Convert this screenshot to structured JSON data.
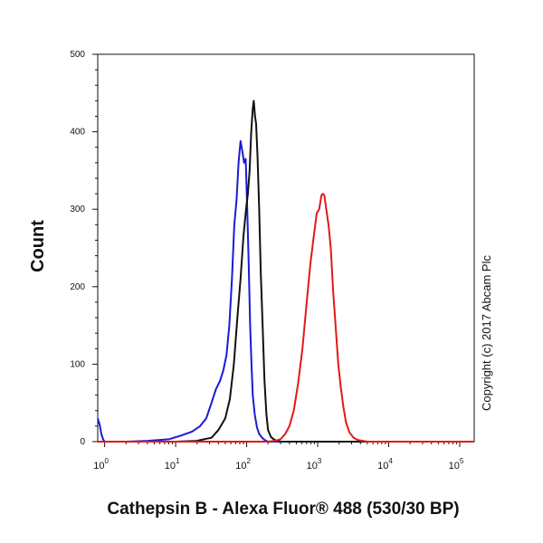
{
  "chart_data": {
    "type": "line",
    "title": "",
    "xlabel": "Cathepsin B - Alexa Fluor® 488 (530/30 BP)",
    "ylabel": "Count",
    "xscale": "log",
    "xlim": [
      0.8,
      160000
    ],
    "ylim": [
      0,
      500
    ],
    "yticks": [
      0,
      100,
      200,
      300,
      400,
      500
    ],
    "xticks": [
      {
        "base": "10",
        "exp": "0",
        "value": 1
      },
      {
        "base": "10",
        "exp": "1",
        "value": 10
      },
      {
        "base": "10",
        "exp": "2",
        "value": 100
      },
      {
        "base": "10",
        "exp": "3",
        "value": 1000
      },
      {
        "base": "10",
        "exp": "4",
        "value": 10000
      },
      {
        "base": "10",
        "exp": "5",
        "value": 100000
      }
    ],
    "annotation": "Copyright (c) 2017 Abcam Plc",
    "grid": false,
    "series": [
      {
        "color": "#1a1ad6",
        "points": [
          [
            0.8,
            30
          ],
          [
            0.85,
            22
          ],
          [
            0.9,
            10
          ],
          [
            0.95,
            3
          ],
          [
            1.0,
            0
          ],
          [
            2,
            0
          ],
          [
            4,
            1
          ],
          [
            8,
            3
          ],
          [
            12,
            8
          ],
          [
            17,
            13
          ],
          [
            22,
            20
          ],
          [
            27,
            30
          ],
          [
            32,
            50
          ],
          [
            37,
            68
          ],
          [
            42,
            78
          ],
          [
            47,
            92
          ],
          [
            52,
            112
          ],
          [
            57,
            150
          ],
          [
            62,
            210
          ],
          [
            67,
            280
          ],
          [
            72,
            312
          ],
          [
            77,
            360
          ],
          [
            82,
            388
          ],
          [
            87,
            375
          ],
          [
            92,
            360
          ],
          [
            97,
            365
          ],
          [
            102,
            300
          ],
          [
            107,
            225
          ],
          [
            112,
            150
          ],
          [
            117,
            100
          ],
          [
            122,
            60
          ],
          [
            130,
            35
          ],
          [
            140,
            18
          ],
          [
            150,
            10
          ],
          [
            165,
            5
          ],
          [
            180,
            2
          ],
          [
            200,
            0
          ],
          [
            400,
            0
          ],
          [
            160000,
            0
          ]
        ]
      },
      {
        "color": "#111111",
        "points": [
          [
            0.8,
            0
          ],
          [
            10,
            0
          ],
          [
            20,
            1
          ],
          [
            25,
            3
          ],
          [
            32,
            5
          ],
          [
            40,
            15
          ],
          [
            50,
            30
          ],
          [
            58,
            55
          ],
          [
            66,
            100
          ],
          [
            74,
            160
          ],
          [
            82,
            210
          ],
          [
            90,
            265
          ],
          [
            98,
            300
          ],
          [
            104,
            320
          ],
          [
            110,
            350
          ],
          [
            116,
            400
          ],
          [
            122,
            430
          ],
          [
            126,
            440
          ],
          [
            131,
            420
          ],
          [
            136,
            410
          ],
          [
            142,
            370
          ],
          [
            150,
            300
          ],
          [
            158,
            220
          ],
          [
            168,
            150
          ],
          [
            178,
            80
          ],
          [
            190,
            35
          ],
          [
            200,
            15
          ],
          [
            220,
            6
          ],
          [
            250,
            2
          ],
          [
            300,
            0
          ],
          [
            160000,
            0
          ]
        ]
      },
      {
        "color": "#e01919",
        "points": [
          [
            0.8,
            0
          ],
          [
            200,
            0
          ],
          [
            250,
            1
          ],
          [
            300,
            3
          ],
          [
            350,
            10
          ],
          [
            400,
            20
          ],
          [
            460,
            40
          ],
          [
            530,
            75
          ],
          [
            610,
            120
          ],
          [
            700,
            180
          ],
          [
            790,
            230
          ],
          [
            880,
            265
          ],
          [
            970,
            295
          ],
          [
            1050,
            300
          ],
          [
            1130,
            318
          ],
          [
            1180,
            320
          ],
          [
            1240,
            318
          ],
          [
            1320,
            300
          ],
          [
            1420,
            280
          ],
          [
            1530,
            250
          ],
          [
            1650,
            195
          ],
          [
            1800,
            145
          ],
          [
            1950,
            100
          ],
          [
            2120,
            70
          ],
          [
            2300,
            45
          ],
          [
            2500,
            25
          ],
          [
            2800,
            12
          ],
          [
            3200,
            5
          ],
          [
            3700,
            2
          ],
          [
            4300,
            1
          ],
          [
            5000,
            0
          ],
          [
            160000,
            0
          ]
        ]
      }
    ]
  }
}
